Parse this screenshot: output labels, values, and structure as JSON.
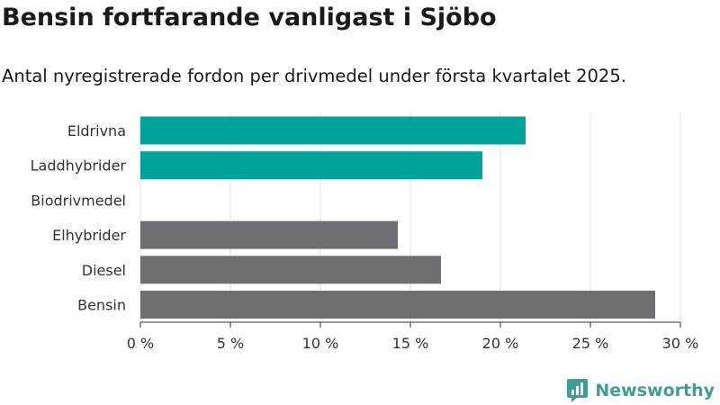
{
  "title": "Bensin fortfarande vanligast i Sjöbo",
  "subtitle": "Antal nyregistrerade fordon per drivmedel under första kvartalet 2025.",
  "logo_text": "Newsworthy",
  "colors": {
    "highlight": "#00a39a",
    "default": "#6e6e73",
    "grid": "#e2e2e2",
    "logo": "#3f9e97"
  },
  "chart_data": {
    "type": "bar",
    "orientation": "horizontal",
    "categories": [
      "Eldrivna",
      "Laddhybrider",
      "Biodrivmedel",
      "Elhybrider",
      "Diesel",
      "Bensin"
    ],
    "values": [
      21.4,
      19.0,
      0,
      14.3,
      16.7,
      28.6
    ],
    "highlight": [
      true,
      true,
      true,
      false,
      false,
      false
    ],
    "xlim": [
      0,
      30
    ],
    "xticks": [
      0,
      5,
      10,
      15,
      20,
      25,
      30
    ],
    "xtick_labels": [
      "0 %",
      "5 %",
      "10 %",
      "15 %",
      "20 %",
      "25 %",
      "30 %"
    ],
    "xlabel": "",
    "ylabel": "",
    "grid": true
  }
}
